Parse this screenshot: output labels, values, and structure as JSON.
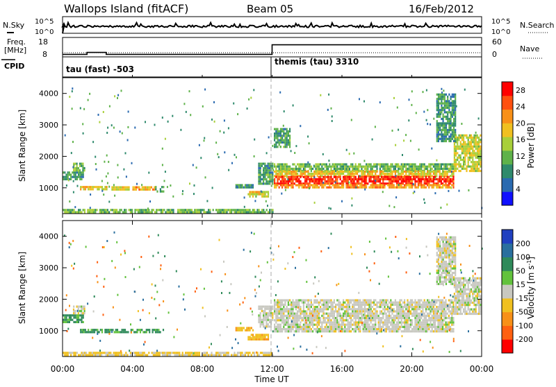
{
  "header": {
    "station": "Wallops Island (fitACF)",
    "beam": "Beam 05",
    "date": "16/Feb/2012"
  },
  "noise_strip": {
    "left_label": "N.Sky",
    "right_label": "N.Search",
    "left_ticks": [
      "10^5",
      "10^0"
    ],
    "right_ticks": [
      "10^5",
      "10^0"
    ]
  },
  "freq_strip": {
    "left_label_1": "Freq.",
    "left_label_2": "[MHz]",
    "left_ticks": [
      "18",
      "8"
    ],
    "right_label": "Nave",
    "right_ticks": [
      "60",
      "0"
    ],
    "cpid_label": "CPID",
    "freq_steps": [
      {
        "t0": 0.0,
        "t1": 1.4,
        "f": 9.3
      },
      {
        "t0": 1.4,
        "t1": 2.5,
        "f": 10.3
      },
      {
        "t0": 2.5,
        "t1": 12.0,
        "f": 9.3
      },
      {
        "t0": 12.0,
        "t1": 24.0,
        "f": 14.2
      }
    ]
  },
  "cpid": [
    {
      "label": "tau (fast) -503"
    },
    {
      "label": "themis (tau) 3310"
    }
  ],
  "chart_data": [
    {
      "type": "heatmap",
      "name": "power",
      "ylabel": "Slant Range [km]",
      "xlabel": "Time UT",
      "xlim": [
        0,
        24
      ],
      "ylim": [
        180,
        4500
      ],
      "x_ticks": [
        "00:00",
        "04:00",
        "08:00",
        "12:00",
        "16:00",
        "20:00",
        "00:00"
      ],
      "x_tick_hours": [
        0,
        4,
        8,
        12,
        16,
        20,
        24
      ],
      "y_ticks": [
        1000,
        2000,
        3000,
        4000
      ],
      "colorbar": {
        "label": "Power [dB]",
        "range": [
          0,
          30
        ],
        "ticks": [
          4,
          8,
          12,
          16,
          20,
          24,
          28
        ],
        "colors": [
          "#1010ff",
          "#2a6ab0",
          "#2f8a6c",
          "#5fb24a",
          "#a8cf3a",
          "#f0c020",
          "#f89018",
          "#ff5010",
          "#ff0000"
        ]
      },
      "features": [
        {
          "t0": 0.0,
          "t1": 1.2,
          "r0": 1300,
          "r1": 1520,
          "v": 10
        },
        {
          "t0": 0.6,
          "t1": 1.3,
          "r0": 1550,
          "r1": 1800,
          "v": 12
        },
        {
          "t0": 1.0,
          "t1": 2.5,
          "r0": 950,
          "r1": 1060,
          "v": 18
        },
        {
          "t0": 2.8,
          "t1": 3.8,
          "r0": 930,
          "r1": 1050,
          "v": 17
        },
        {
          "t0": 4.0,
          "t1": 5.3,
          "r0": 920,
          "r1": 1050,
          "v": 20
        },
        {
          "t0": 5.3,
          "t1": 5.8,
          "r0": 900,
          "r1": 1060,
          "v": 11
        },
        {
          "t0": 9.9,
          "t1": 10.9,
          "r0": 1000,
          "r1": 1120,
          "v": 8
        },
        {
          "t0": 10.6,
          "t1": 11.8,
          "r0": 700,
          "r1": 900,
          "v": 17
        },
        {
          "t0": 11.2,
          "t1": 12.0,
          "r0": 1150,
          "r1": 1800,
          "v": 10
        },
        {
          "t0": 0.0,
          "t1": 12.0,
          "r0": 240,
          "r1": 330,
          "v": 12
        },
        {
          "t0": 12.1,
          "t1": 22.4,
          "r0": 1550,
          "r1": 1780,
          "v": 12
        },
        {
          "t0": 12.1,
          "t1": 22.4,
          "r0": 1380,
          "r1": 1550,
          "v": 18
        },
        {
          "t0": 12.1,
          "t1": 22.4,
          "r0": 1120,
          "r1": 1380,
          "v": 27
        },
        {
          "t0": 12.1,
          "t1": 22.4,
          "r0": 980,
          "r1": 1120,
          "v": 21
        },
        {
          "t0": 22.4,
          "t1": 23.9,
          "r0": 1550,
          "r1": 2700,
          "v": 16
        },
        {
          "t0": 12.1,
          "t1": 13.0,
          "r0": 2300,
          "r1": 2900,
          "v": 10
        },
        {
          "t0": 21.4,
          "t1": 22.5,
          "r0": 2500,
          "r1": 4000,
          "v": 9
        }
      ]
    },
    {
      "type": "heatmap",
      "name": "velocity",
      "ylabel": "Slant Range [km]",
      "xlabel": "Time UT",
      "xlim": [
        0,
        24
      ],
      "ylim": [
        180,
        4500
      ],
      "x_ticks": [
        "00:00",
        "04:00",
        "08:00",
        "12:00",
        "16:00",
        "20:00",
        "00:00"
      ],
      "x_tick_hours": [
        0,
        4,
        8,
        12,
        16,
        20,
        24
      ],
      "y_ticks": [
        1000,
        2000,
        3000,
        4000
      ],
      "colorbar": {
        "label": "Velocity [m s^-1]",
        "ticks": [
          200,
          100,
          50,
          15,
          -15,
          -50,
          -100,
          -200
        ],
        "colors": [
          "#2040c0",
          "#2a6f9e",
          "#2f8a5a",
          "#62c23c",
          "#c8c8c0",
          "#f0c020",
          "#f89018",
          "#ff6010",
          "#ff0000"
        ]
      },
      "features": [
        {
          "t0": 0.0,
          "t1": 1.2,
          "r0": 1300,
          "r1": 1520,
          "v": 60
        },
        {
          "t0": 0.6,
          "t1": 1.3,
          "r0": 1550,
          "r1": 1800,
          "v": 0
        },
        {
          "t0": 1.0,
          "t1": 5.8,
          "r0": 920,
          "r1": 1060,
          "v": 60
        },
        {
          "t0": 9.9,
          "t1": 10.9,
          "r0": 1000,
          "r1": 1120,
          "v": -50
        },
        {
          "t0": 10.6,
          "t1": 11.8,
          "r0": 700,
          "r1": 900,
          "v": -40
        },
        {
          "t0": 11.2,
          "t1": 12.0,
          "r0": 1150,
          "r1": 1800,
          "v": 0
        },
        {
          "t0": 0.0,
          "t1": 12.0,
          "r0": 240,
          "r1": 330,
          "v": -20
        },
        {
          "t0": 12.1,
          "t1": 22.4,
          "r0": 1000,
          "r1": 2000,
          "v": 0
        },
        {
          "t0": 22.4,
          "t1": 23.9,
          "r0": 1550,
          "r1": 2700,
          "v": 0
        },
        {
          "t0": 21.4,
          "t1": 22.5,
          "r0": 2500,
          "r1": 4000,
          "v": 0
        }
      ]
    }
  ]
}
